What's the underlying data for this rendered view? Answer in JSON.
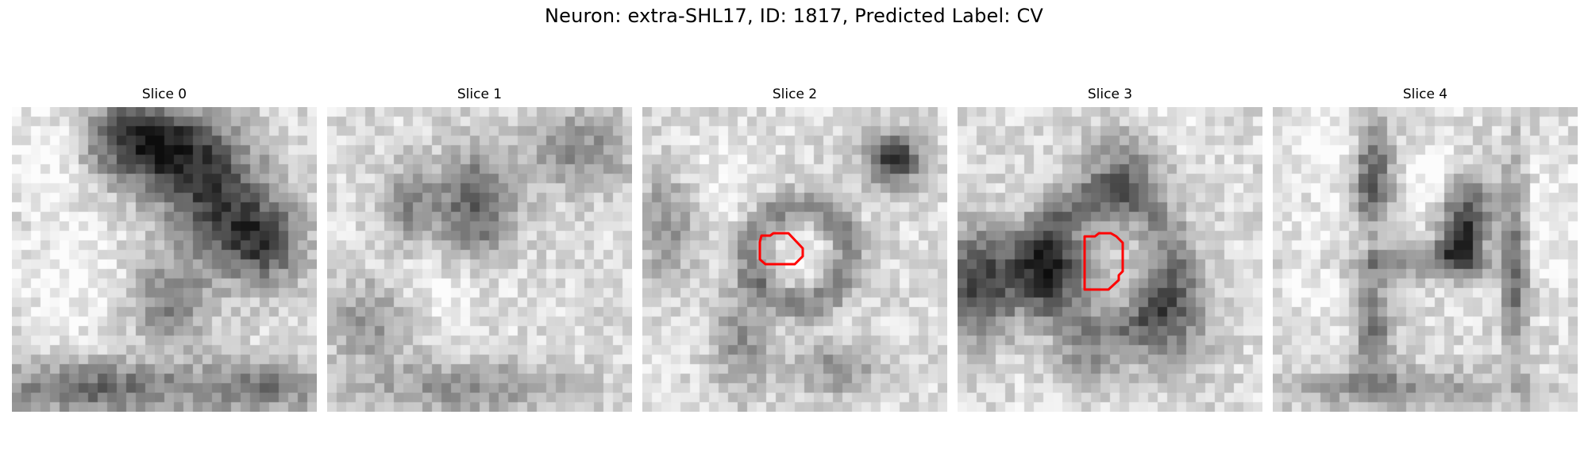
{
  "figure": {
    "title": "Neuron: extra-SHL17, ID: 1817, Predicted Label: CV",
    "panels": [
      {
        "title": "Slice 0",
        "has_outline": false
      },
      {
        "title": "Slice 1",
        "has_outline": false
      },
      {
        "title": "Slice 2",
        "has_outline": true
      },
      {
        "title": "Slice 3",
        "has_outline": true
      },
      {
        "title": "Slice 4",
        "has_outline": false
      }
    ],
    "outline_color": "#ff0000",
    "colormap": "gray"
  }
}
